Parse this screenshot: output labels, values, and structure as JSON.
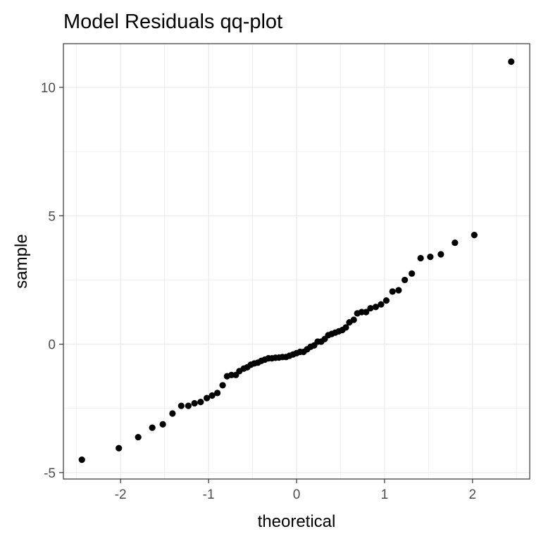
{
  "chart_data": {
    "type": "scatter",
    "title": "Model Residuals qq-plot",
    "xlabel": "theoretical",
    "ylabel": "sample",
    "xlim": [
      -2.65,
      2.65
    ],
    "ylim": [
      -5.25,
      11.7
    ],
    "x_ticks": [
      -2,
      -1,
      0,
      1,
      2
    ],
    "x_tick_labels": [
      "-2",
      "-1",
      "0",
      "1",
      "2"
    ],
    "y_ticks": [
      -5,
      0,
      5,
      10
    ],
    "y_tick_labels": [
      "-5",
      "0",
      "5",
      "10"
    ],
    "grid": true,
    "legend": "none",
    "point_color": "#000000",
    "gridline_color": "#ebebeb",
    "panel_border_color": "#333333",
    "points": [
      {
        "x": -2.44,
        "y": -4.5
      },
      {
        "x": -2.02,
        "y": -4.05
      },
      {
        "x": -1.8,
        "y": -3.62
      },
      {
        "x": -1.64,
        "y": -3.25
      },
      {
        "x": -1.52,
        "y": -3.12
      },
      {
        "x": -1.41,
        "y": -2.7
      },
      {
        "x": -1.31,
        "y": -2.4
      },
      {
        "x": -1.23,
        "y": -2.4
      },
      {
        "x": -1.16,
        "y": -2.3
      },
      {
        "x": -1.09,
        "y": -2.25
      },
      {
        "x": -1.02,
        "y": -2.1
      },
      {
        "x": -0.96,
        "y": -2.0
      },
      {
        "x": -0.9,
        "y": -1.9
      },
      {
        "x": -0.84,
        "y": -1.6
      },
      {
        "x": -0.79,
        "y": -1.25
      },
      {
        "x": -0.74,
        "y": -1.2
      },
      {
        "x": -0.69,
        "y": -1.2
      },
      {
        "x": -0.65,
        "y": -1.05
      },
      {
        "x": -0.6,
        "y": -0.95
      },
      {
        "x": -0.56,
        "y": -0.9
      },
      {
        "x": -0.52,
        "y": -0.8
      },
      {
        "x": -0.48,
        "y": -0.75
      },
      {
        "x": -0.44,
        "y": -0.72
      },
      {
        "x": -0.4,
        "y": -0.65
      },
      {
        "x": -0.36,
        "y": -0.6
      },
      {
        "x": -0.32,
        "y": -0.55
      },
      {
        "x": -0.28,
        "y": -0.55
      },
      {
        "x": -0.24,
        "y": -0.53
      },
      {
        "x": -0.2,
        "y": -0.52
      },
      {
        "x": -0.16,
        "y": -0.5
      },
      {
        "x": -0.12,
        "y": -0.5
      },
      {
        "x": -0.08,
        "y": -0.45
      },
      {
        "x": -0.04,
        "y": -0.4
      },
      {
        "x": 0.0,
        "y": -0.35
      },
      {
        "x": 0.04,
        "y": -0.3
      },
      {
        "x": 0.08,
        "y": -0.3
      },
      {
        "x": 0.12,
        "y": -0.2
      },
      {
        "x": 0.16,
        "y": -0.1
      },
      {
        "x": 0.2,
        "y": -0.05
      },
      {
        "x": 0.24,
        "y": 0.1
      },
      {
        "x": 0.28,
        "y": 0.1
      },
      {
        "x": 0.32,
        "y": 0.2
      },
      {
        "x": 0.36,
        "y": 0.35
      },
      {
        "x": 0.4,
        "y": 0.4
      },
      {
        "x": 0.44,
        "y": 0.45
      },
      {
        "x": 0.48,
        "y": 0.5
      },
      {
        "x": 0.52,
        "y": 0.55
      },
      {
        "x": 0.56,
        "y": 0.65
      },
      {
        "x": 0.6,
        "y": 0.85
      },
      {
        "x": 0.65,
        "y": 0.95
      },
      {
        "x": 0.69,
        "y": 1.2
      },
      {
        "x": 0.74,
        "y": 1.25
      },
      {
        "x": 0.79,
        "y": 1.25
      },
      {
        "x": 0.84,
        "y": 1.4
      },
      {
        "x": 0.9,
        "y": 1.45
      },
      {
        "x": 0.96,
        "y": 1.55
      },
      {
        "x": 1.02,
        "y": 1.7
      },
      {
        "x": 1.09,
        "y": 2.05
      },
      {
        "x": 1.16,
        "y": 2.1
      },
      {
        "x": 1.23,
        "y": 2.5
      },
      {
        "x": 1.31,
        "y": 2.75
      },
      {
        "x": 1.41,
        "y": 3.35
      },
      {
        "x": 1.52,
        "y": 3.4
      },
      {
        "x": 1.64,
        "y": 3.5
      },
      {
        "x": 1.8,
        "y": 3.95
      },
      {
        "x": 2.02,
        "y": 4.25
      },
      {
        "x": 2.44,
        "y": 11.0
      }
    ]
  }
}
